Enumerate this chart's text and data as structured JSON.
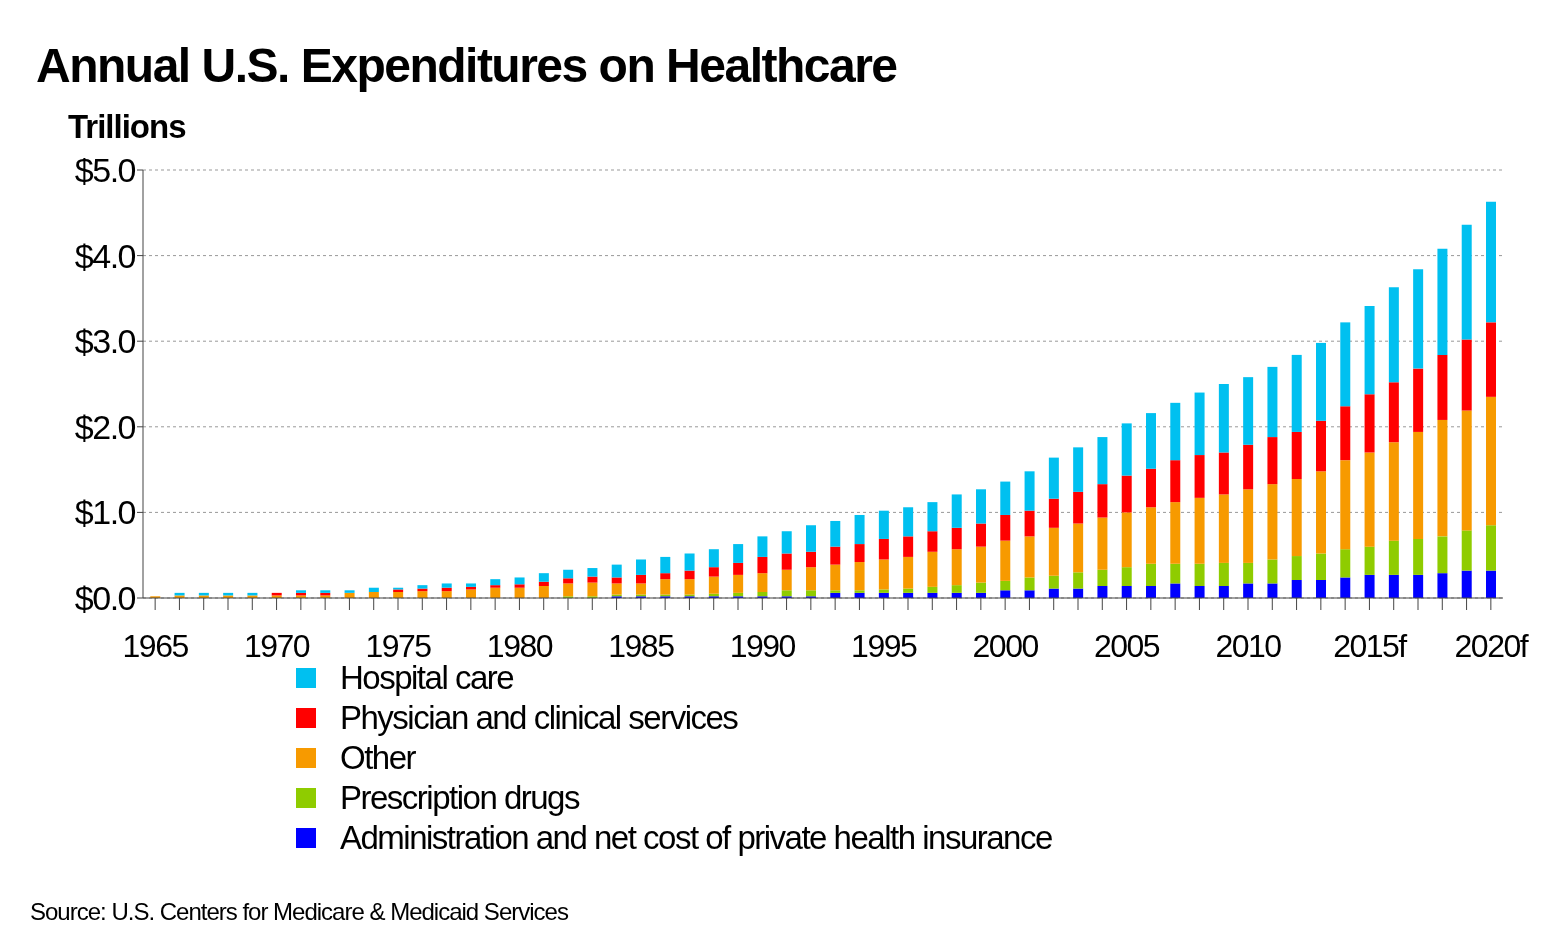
{
  "chart_data": {
    "type": "bar",
    "title": "Annual U.S. Expenditures on Healthcare",
    "ylabel": "Trillions",
    "stacked": true,
    "grid": "y",
    "legend": "bottom",
    "categories": [
      "1965",
      null,
      null,
      null,
      null,
      "1970",
      null,
      null,
      null,
      null,
      "1975",
      null,
      null,
      null,
      null,
      "1980",
      null,
      null,
      null,
      null,
      "1985",
      null,
      null,
      null,
      null,
      "1990",
      null,
      null,
      null,
      null,
      "1995",
      null,
      null,
      null,
      null,
      "2000",
      null,
      null,
      null,
      null,
      "2005",
      null,
      null,
      null,
      null,
      "2010",
      null,
      null,
      null,
      null,
      "2015f",
      null,
      null,
      null,
      null,
      "2020f"
    ],
    "series": [
      {
        "name": "Administration and net cost of private health insurance",
        "color": "#0000ff",
        "values": [
          0,
          0,
          0,
          0,
          0,
          0,
          0,
          0,
          0,
          0,
          0,
          0,
          0,
          0,
          0,
          0,
          0,
          0,
          null,
          0.02,
          0.02,
          0.02,
          0.02,
          0.02,
          0.02,
          0.02,
          0.02,
          0.02,
          0.06,
          0.06,
          0.06,
          0.06,
          0.06,
          0.06,
          0.06,
          0.09,
          0.09,
          0.11,
          0.11,
          0.14,
          0.14,
          0.14,
          0.17,
          0.14,
          0.14,
          0.17,
          0.17,
          0.21,
          0.21,
          0.24,
          0.27,
          0.27,
          0.27,
          0.29,
          0.32,
          0.32
        ]
      },
      {
        "name": "Prescription drugs",
        "color": "#8fcc00",
        "values": [
          0,
          0,
          0,
          0,
          0,
          0,
          0,
          0,
          0,
          0,
          0,
          0,
          0,
          0,
          0,
          null,
          null,
          0.02,
          0.02,
          0.02,
          0.02,
          0.02,
          0.02,
          0.03,
          0.04,
          0.05,
          0.07,
          0.07,
          0.03,
          0.03,
          0.04,
          0.05,
          0.07,
          0.09,
          0.12,
          0.11,
          0.15,
          0.15,
          0.19,
          0.19,
          0.22,
          0.26,
          0.23,
          0.26,
          0.27,
          0.24,
          0.28,
          0.28,
          0.31,
          0.33,
          0.33,
          0.4,
          0.42,
          0.43,
          0.47,
          0.53
        ]
      },
      {
        "name": "Other",
        "color": "#f79a00",
        "values": [
          0.02,
          0.03,
          0.03,
          0.03,
          0.03,
          0.03,
          0.03,
          0.03,
          0.06,
          0.07,
          0.07,
          0.08,
          0.08,
          0.1,
          0.12,
          0.12,
          0.14,
          0.15,
          0.16,
          0.13,
          0.13,
          0.18,
          0.18,
          0.2,
          0.21,
          0.22,
          0.24,
          0.27,
          0.3,
          0.33,
          0.35,
          0.37,
          0.41,
          0.42,
          0.42,
          0.47,
          0.48,
          0.56,
          0.57,
          0.61,
          0.64,
          0.66,
          0.72,
          0.77,
          0.8,
          0.86,
          0.88,
          0.9,
          0.96,
          1.04,
          1.1,
          1.15,
          1.25,
          1.36,
          1.4,
          1.5
        ]
      },
      {
        "name": "Physician and clinical services",
        "color": "#ff0000",
        "values": [
          0,
          0,
          0,
          0,
          0,
          0.03,
          0.03,
          0.03,
          0,
          0,
          0.03,
          0.03,
          0.04,
          0.03,
          0.03,
          0.04,
          0.05,
          0.06,
          0.07,
          0.07,
          0.1,
          0.07,
          0.1,
          0.11,
          0.14,
          0.19,
          0.19,
          0.18,
          0.21,
          0.21,
          0.24,
          0.24,
          0.24,
          0.25,
          0.27,
          0.3,
          0.3,
          0.34,
          0.37,
          0.39,
          0.43,
          0.45,
          0.49,
          0.5,
          0.49,
          0.52,
          0.55,
          0.55,
          0.59,
          0.63,
          0.68,
          0.7,
          0.74,
          0.76,
          0.83,
          0.87
        ]
      },
      {
        "name": "Hospital care",
        "color": "#00c0f0",
        "values": [
          0,
          0.03,
          0.03,
          0.03,
          0.03,
          0,
          0.03,
          0.03,
          0.03,
          0.05,
          0.02,
          0.04,
          0.05,
          0.04,
          0.07,
          0.08,
          0.1,
          0.1,
          0.1,
          0.15,
          0.18,
          0.19,
          0.2,
          0.21,
          0.22,
          0.24,
          0.26,
          0.31,
          0.3,
          0.34,
          0.33,
          0.34,
          0.34,
          0.39,
          0.4,
          0.39,
          0.46,
          0.48,
          0.52,
          0.55,
          0.61,
          0.65,
          0.67,
          0.73,
          0.8,
          0.79,
          0.82,
          0.9,
          0.91,
          0.98,
          1.03,
          1.11,
          1.16,
          1.24,
          1.34,
          1.41
        ]
      }
    ],
    "ylim": [
      0,
      5
    ],
    "yticks": [
      {
        "value": 0,
        "label": "$0.0"
      },
      {
        "value": 1,
        "label": "$1.0"
      },
      {
        "value": 2,
        "label": "$2.0"
      },
      {
        "value": 3,
        "label": "$3.0"
      },
      {
        "value": 4,
        "label": "$4.0"
      },
      {
        "value": 5,
        "label": "$5.0"
      }
    ],
    "annotations": [
      "Source: U.S. Centers for Medicare & Medicaid Services"
    ]
  }
}
